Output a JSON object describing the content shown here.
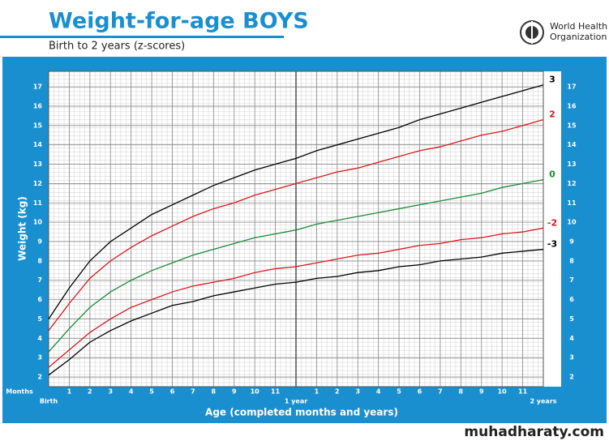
{
  "chart_data": {
    "type": "line",
    "title": "Weight-for-age BOYS",
    "subtitle": "Birth to 2 years (z-scores)",
    "x_label": "Age (completed months and years)",
    "x_unit_label": "Months",
    "y_label": "Weight (kg)",
    "x": [
      0,
      1,
      2,
      3,
      4,
      5,
      6,
      7,
      8,
      9,
      10,
      11,
      12,
      13,
      14,
      15,
      16,
      17,
      18,
      19,
      20,
      21,
      22,
      23,
      24
    ],
    "series": [
      {
        "name": "3",
        "color": "#000000",
        "values": [
          5.0,
          6.6,
          8.0,
          9.0,
          9.7,
          10.4,
          10.9,
          11.4,
          11.9,
          12.3,
          12.7,
          13.0,
          13.3,
          13.7,
          14.0,
          14.3,
          14.6,
          14.9,
          15.3,
          15.6,
          15.9,
          16.2,
          16.5,
          16.8,
          17.1
        ]
      },
      {
        "name": "2",
        "color": "#d7191c",
        "values": [
          4.4,
          5.8,
          7.1,
          8.0,
          8.7,
          9.3,
          9.8,
          10.3,
          10.7,
          11.0,
          11.4,
          11.7,
          12.0,
          12.3,
          12.6,
          12.8,
          13.1,
          13.4,
          13.7,
          13.9,
          14.2,
          14.5,
          14.7,
          15.0,
          15.3
        ]
      },
      {
        "name": "0",
        "color": "#1a8a3a",
        "values": [
          3.3,
          4.5,
          5.6,
          6.4,
          7.0,
          7.5,
          7.9,
          8.3,
          8.6,
          8.9,
          9.2,
          9.4,
          9.6,
          9.9,
          10.1,
          10.3,
          10.5,
          10.7,
          10.9,
          11.1,
          11.3,
          11.5,
          11.8,
          12.0,
          12.2
        ]
      },
      {
        "name": "-2",
        "color": "#d7191c",
        "values": [
          2.5,
          3.4,
          4.3,
          5.0,
          5.6,
          6.0,
          6.4,
          6.7,
          6.9,
          7.1,
          7.4,
          7.6,
          7.7,
          7.9,
          8.1,
          8.3,
          8.4,
          8.6,
          8.8,
          8.9,
          9.1,
          9.2,
          9.4,
          9.5,
          9.7
        ]
      },
      {
        "name": "-3",
        "color": "#000000",
        "values": [
          2.1,
          2.9,
          3.8,
          4.4,
          4.9,
          5.3,
          5.7,
          5.9,
          6.2,
          6.4,
          6.6,
          6.8,
          6.9,
          7.1,
          7.2,
          7.4,
          7.5,
          7.7,
          7.8,
          8.0,
          8.1,
          8.2,
          8.4,
          8.5,
          8.6
        ]
      }
    ],
    "xlim": [
      0,
      24
    ],
    "xticks": [
      {
        "value": 0,
        "label": "Birth"
      },
      1,
      2,
      3,
      4,
      5,
      6,
      7,
      8,
      9,
      10,
      11,
      {
        "value": 12,
        "label": "1 year"
      },
      {
        "value": 13,
        "label": "1"
      },
      {
        "value": 14,
        "label": "2"
      },
      {
        "value": 15,
        "label": "3"
      },
      {
        "value": 16,
        "label": "4"
      },
      {
        "value": 17,
        "label": "5"
      },
      {
        "value": 18,
        "label": "6"
      },
      {
        "value": 19,
        "label": "7"
      },
      {
        "value": 20,
        "label": "8"
      },
      {
        "value": 21,
        "label": "9"
      },
      {
        "value": 22,
        "label": "10"
      },
      {
        "value": 23,
        "label": "11"
      },
      {
        "value": 24,
        "label": "2 years"
      }
    ],
    "ylim": [
      1.5,
      17.8
    ],
    "yticks": [
      2,
      3,
      4,
      5,
      6,
      7,
      8,
      9,
      10,
      11,
      12,
      13,
      14,
      15,
      16,
      17
    ],
    "grid": true
  },
  "logo_text": [
    "World Health",
    "Organization"
  ],
  "watermark": "muhadharaty.com"
}
